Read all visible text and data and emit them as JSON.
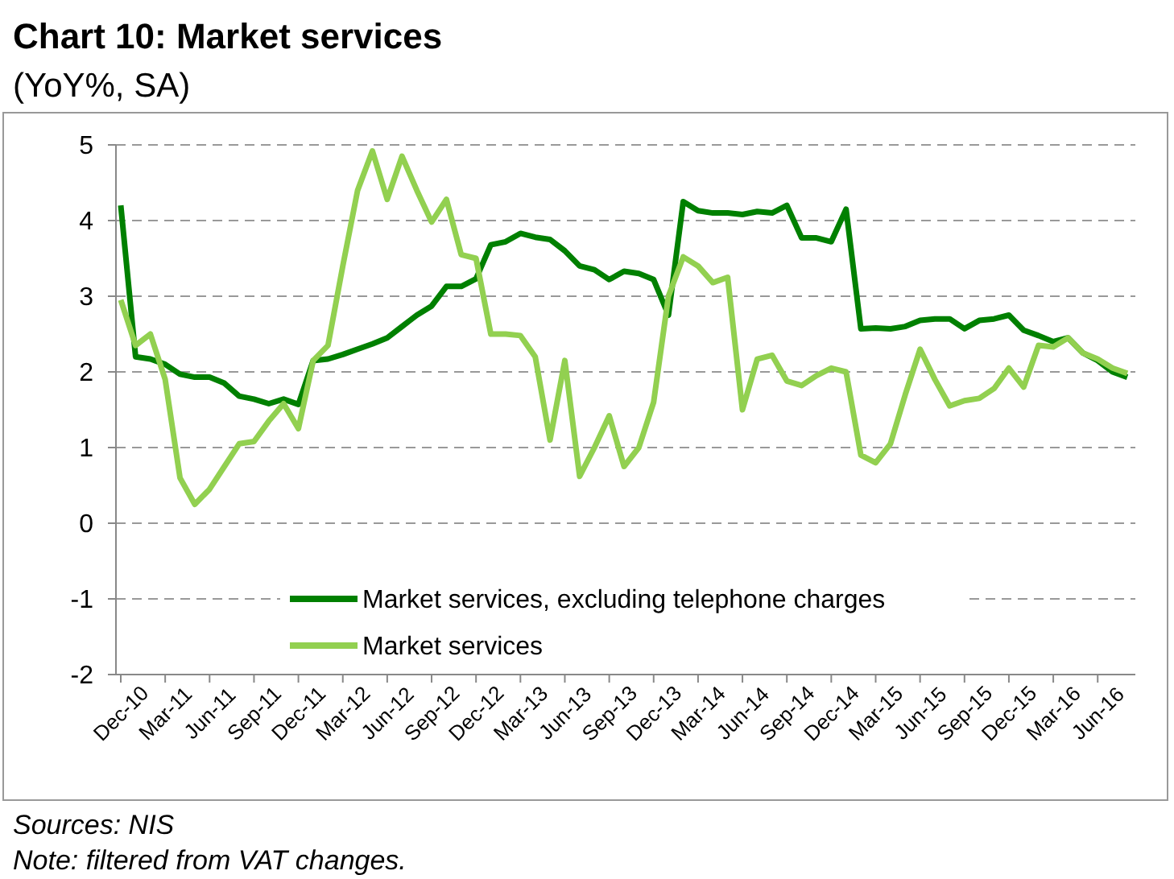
{
  "chart_data": {
    "type": "line",
    "title": "Chart 10: Market services",
    "subtitle": "(YoY%, SA)",
    "categories": [
      "Dec-10",
      null,
      null,
      "Mar-11",
      null,
      null,
      "Jun-11",
      null,
      null,
      "Sep-11",
      null,
      null,
      "Dec-11",
      null,
      null,
      "Mar-12",
      null,
      null,
      "Jun-12",
      null,
      null,
      "Sep-12",
      null,
      null,
      "Dec-12",
      null,
      null,
      "Mar-13",
      null,
      null,
      "Jun-13",
      null,
      null,
      "Sep-13",
      null,
      null,
      "Dec-13",
      null,
      null,
      "Mar-14",
      null,
      null,
      "Jun-14",
      null,
      null,
      "Sep-14",
      null,
      null,
      "Dec-14",
      null,
      null,
      "Mar-15",
      null,
      null,
      "Jun-15",
      null,
      null,
      "Sep-15",
      null,
      null,
      "Dec-15",
      null,
      null,
      "Mar-16",
      null,
      null,
      "Jun-16",
      null,
      null
    ],
    "series": [
      {
        "name": "Market services, excluding telephone charges",
        "color": "#008000",
        "values": [
          4.2,
          2.2,
          2.17,
          2.1,
          1.97,
          1.93,
          1.93,
          1.85,
          1.68,
          1.64,
          1.58,
          1.64,
          1.57,
          2.15,
          2.17,
          2.23,
          2.3,
          2.37,
          2.45,
          2.6,
          2.75,
          2.87,
          3.13,
          3.13,
          3.23,
          3.68,
          3.72,
          3.83,
          3.78,
          3.75,
          3.6,
          3.4,
          3.35,
          3.22,
          3.33,
          3.3,
          3.22,
          2.75,
          4.25,
          4.13,
          4.1,
          4.1,
          4.08,
          4.12,
          4.1,
          4.2,
          3.77,
          3.77,
          3.72,
          4.15,
          2.57,
          2.58,
          2.57,
          2.6,
          2.68,
          2.7,
          2.7,
          2.57,
          2.68,
          2.7,
          2.75,
          2.55,
          2.48,
          2.4,
          2.45,
          2.25,
          2.15,
          2.0,
          1.93
        ]
      },
      {
        "name": "Market services",
        "color": "#92d050",
        "values": [
          2.95,
          2.35,
          2.5,
          1.9,
          0.6,
          0.25,
          0.45,
          0.75,
          1.05,
          1.08,
          1.35,
          1.58,
          1.25,
          2.15,
          2.35,
          3.4,
          4.4,
          4.92,
          4.28,
          4.85,
          4.4,
          3.98,
          4.28,
          3.55,
          3.5,
          2.5,
          2.5,
          2.48,
          2.2,
          1.1,
          2.15,
          0.62,
          1.0,
          1.42,
          0.75,
          1.0,
          1.6,
          3.0,
          3.52,
          3.4,
          3.18,
          3.25,
          1.5,
          2.17,
          2.22,
          1.88,
          1.82,
          1.95,
          2.05,
          2.0,
          0.9,
          0.8,
          1.05,
          1.7,
          2.3,
          1.9,
          1.55,
          1.62,
          1.65,
          1.78,
          2.05,
          1.8,
          2.35,
          2.33,
          2.45,
          2.25,
          2.17,
          2.05,
          1.98
        ]
      }
    ],
    "ylim": [
      -2,
      5
    ],
    "yticks": [
      -2,
      -1,
      0,
      1,
      2,
      3,
      4,
      5
    ],
    "grid": "y",
    "legend": "bottom",
    "line_style": "solid",
    "marker": "none",
    "annotations": [
      "Sources: NIS",
      "Note: filtered from VAT changes."
    ]
  }
}
